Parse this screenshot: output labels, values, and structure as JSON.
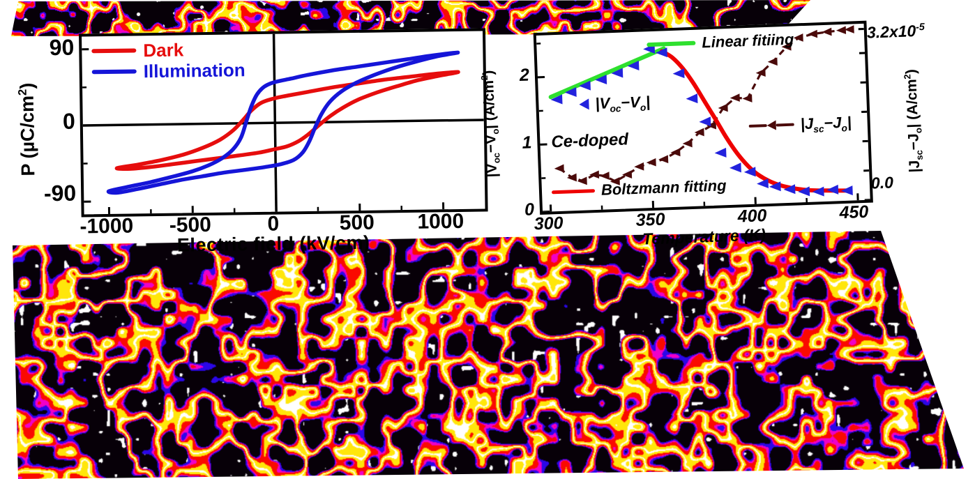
{
  "textures": {
    "palette": {
      "black": "#070008",
      "blue": "#2b07e8",
      "magenta": "#f000c8",
      "red": "#fa0a00",
      "yellow": "#ffe60a",
      "white": "#ffffff"
    }
  },
  "chart_data": [
    {
      "id": "pe_hysteresis",
      "type": "line",
      "xlabel": "Electric field (kV/cm)",
      "ylabel_segments": [
        {
          "t": "P (µC/cm"
        },
        {
          "t": "2",
          "sup": true
        },
        {
          "t": ")"
        }
      ],
      "xlim": [
        -1150,
        1250
      ],
      "ylim": [
        -105,
        105
      ],
      "x_ticks": [
        -1000,
        -500,
        0,
        500,
        1000
      ],
      "y_ticks": [
        90,
        0,
        -90
      ],
      "legend": [
        {
          "label": "Dark",
          "color": "#e60d0d"
        },
        {
          "label": "Illumination",
          "color": "#1515d8"
        }
      ],
      "series": [
        {
          "name": "Dark",
          "color": "#e60d0d",
          "loop": [
            [
              1100,
              57
            ],
            [
              950,
              55
            ],
            [
              800,
              52
            ],
            [
              650,
              49
            ],
            [
              500,
              45
            ],
            [
              350,
              41
            ],
            [
              200,
              36
            ],
            [
              80,
              32
            ],
            [
              0,
              29
            ],
            [
              -80,
              24
            ],
            [
              -140,
              15
            ],
            [
              -190,
              4
            ],
            [
              -250,
              -8
            ],
            [
              -330,
              -19
            ],
            [
              -430,
              -28
            ],
            [
              -550,
              -36
            ],
            [
              -680,
              -42
            ],
            [
              -820,
              -47
            ],
            [
              -950,
              -51
            ],
            [
              -870,
              -52
            ],
            [
              -740,
              -50
            ],
            [
              -610,
              -47
            ],
            [
              -480,
              -44
            ],
            [
              -350,
              -41
            ],
            [
              -220,
              -38
            ],
            [
              -100,
              -35
            ],
            [
              0,
              -31
            ],
            [
              70,
              -28
            ],
            [
              140,
              -22
            ],
            [
              200,
              -14
            ],
            [
              260,
              -4
            ],
            [
              330,
              7
            ],
            [
              410,
              17
            ],
            [
              500,
              26
            ],
            [
              610,
              34
            ],
            [
              730,
              41
            ],
            [
              860,
              48
            ],
            [
              990,
              53
            ]
          ]
        },
        {
          "name": "Illumination",
          "color": "#1515d8",
          "loop": [
            [
              1100,
              80
            ],
            [
              950,
              77
            ],
            [
              800,
              73
            ],
            [
              650,
              69
            ],
            [
              500,
              65
            ],
            [
              350,
              61
            ],
            [
              200,
              56
            ],
            [
              100,
              52
            ],
            [
              0,
              48
            ],
            [
              -60,
              43
            ],
            [
              -105,
              34
            ],
            [
              -140,
              20
            ],
            [
              -170,
              3
            ],
            [
              -205,
              -17
            ],
            [
              -255,
              -31
            ],
            [
              -320,
              -41
            ],
            [
              -400,
              -49
            ],
            [
              -500,
              -56
            ],
            [
              -620,
              -62
            ],
            [
              -750,
              -68
            ],
            [
              -880,
              -73
            ],
            [
              -1000,
              -78
            ],
            [
              -950,
              -80
            ],
            [
              -830,
              -76
            ],
            [
              -700,
              -71
            ],
            [
              -570,
              -66
            ],
            [
              -440,
              -62
            ],
            [
              -310,
              -58
            ],
            [
              -180,
              -55
            ],
            [
              -60,
              -52
            ],
            [
              30,
              -49
            ],
            [
              110,
              -44
            ],
            [
              165,
              -35
            ],
            [
              205,
              -22
            ],
            [
              240,
              -6
            ],
            [
              280,
              10
            ],
            [
              330,
              24
            ],
            [
              400,
              36
            ],
            [
              490,
              46
            ],
            [
              600,
              55
            ],
            [
              720,
              63
            ],
            [
              850,
              70
            ],
            [
              980,
              76
            ]
          ]
        }
      ]
    },
    {
      "id": "photoresponse_vs_temperature",
      "type": "line",
      "xlabel": "Temperature (K)",
      "ylabel_left_segments": [
        {
          "t": "|V"
        },
        {
          "t": "oc",
          "sub": true
        },
        {
          "t": "−V"
        },
        {
          "t": "o",
          "sub": true
        },
        {
          "t": "| (A/cm"
        },
        {
          "t": "2",
          "sup": true
        },
        {
          "t": ")"
        }
      ],
      "ylabel_right_segments": [
        {
          "t": "|J"
        },
        {
          "t": "sc",
          "sub": true
        },
        {
          "t": "−J"
        },
        {
          "t": "o",
          "sub": true
        },
        {
          "t": "| (A/cm"
        },
        {
          "t": "2",
          "sup": true
        },
        {
          "t": ")"
        }
      ],
      "xlim": [
        296,
        456
      ],
      "ylim_left": [
        0,
        2.62
      ],
      "ylim_right_1e-5": [
        0,
        3.3
      ],
      "x_ticks": [
        300,
        350,
        400,
        450
      ],
      "y_ticks_left": [
        2,
        1,
        0
      ],
      "right_tick_top_segments": [
        {
          "t": "3.2x10"
        },
        {
          "t": "-5",
          "sup": true
        }
      ],
      "right_tick_bottom": "0.0",
      "annotations": {
        "linear_fit": "Linear fitiing",
        "voc_segments": [
          {
            "t": "|V"
          },
          {
            "t": "oc",
            "sub": true
          },
          {
            "t": "−V"
          },
          {
            "t": "o",
            "sub": true
          },
          {
            "t": "|"
          }
        ],
        "ce_doped": "Ce-doped",
        "jsc_segments": [
          {
            "t": "|J"
          },
          {
            "t": "sc",
            "sub": true
          },
          {
            "t": "−J"
          },
          {
            "t": "o",
            "sub": true
          },
          {
            "t": "|"
          }
        ],
        "boltzmann_fit": "Boltzmann fitting"
      },
      "series": [
        {
          "name": "|Voc-Vo|",
          "marker": "left-triangle",
          "color": "#2222dd",
          "axis": "left",
          "points": [
            [
              305,
              1.66
            ],
            [
              312,
              1.76
            ],
            [
              319,
              1.85
            ],
            [
              327,
              1.93
            ],
            [
              335,
              2.02
            ],
            [
              343,
              2.12
            ],
            [
              351,
              2.36
            ],
            [
              357,
              2.3
            ],
            [
              365,
              1.98
            ],
            [
              371,
              1.6
            ],
            [
              377,
              1.25
            ],
            [
              384,
              0.78
            ],
            [
              391,
              0.55
            ],
            [
              398,
              0.48
            ],
            [
              404,
              0.3
            ],
            [
              410,
              0.25
            ],
            [
              417,
              0.2
            ],
            [
              424,
              0.16
            ],
            [
              431,
              0.15
            ],
            [
              438,
              0.17
            ],
            [
              445,
              0.15
            ]
          ]
        },
        {
          "name": "Linear fitiing",
          "color": "#2ee02e",
          "axis": "left",
          "points": [
            [
              302,
              1.7
            ],
            [
              358,
              2.36
            ]
          ]
        },
        {
          "name": "Boltzmann fitting",
          "color": "#ee0000",
          "axis": "left",
          "points": [
            [
              357,
              2.32
            ],
            [
              362,
              2.22
            ],
            [
              367,
              2.05
            ],
            [
              372,
              1.82
            ],
            [
              377,
              1.55
            ],
            [
              382,
              1.28
            ],
            [
              387,
              1.0
            ],
            [
              392,
              0.76
            ],
            [
              397,
              0.57
            ],
            [
              402,
              0.43
            ],
            [
              408,
              0.32
            ],
            [
              414,
              0.25
            ],
            [
              421,
              0.2
            ],
            [
              429,
              0.17
            ],
            [
              437,
              0.16
            ],
            [
              446,
              0.15
            ]
          ]
        },
        {
          "name": "|Jsc-Jo|",
          "marker": "left-triangle",
          "color": "#4a0a0a",
          "axis": "right",
          "dashed": true,
          "points": [
            [
              305,
              0.8
            ],
            [
              311,
              0.62
            ],
            [
              316,
              0.55
            ],
            [
              322,
              0.66
            ],
            [
              327,
              0.63
            ],
            [
              332,
              0.52
            ],
            [
              338,
              0.64
            ],
            [
              344,
              0.78
            ],
            [
              350,
              0.85
            ],
            [
              356,
              0.9
            ],
            [
              362,
              1.02
            ],
            [
              368,
              1.18
            ],
            [
              374,
              1.38
            ],
            [
              380,
              1.5
            ],
            [
              386,
              1.82
            ],
            [
              392,
              2.0
            ],
            [
              398,
              1.98
            ],
            [
              405,
              2.45
            ],
            [
              411,
              2.65
            ],
            [
              418,
              2.92
            ],
            [
              424,
              3.08
            ],
            [
              431,
              3.14
            ],
            [
              438,
              3.17
            ],
            [
              445,
              3.19
            ],
            [
              449,
              3.2
            ]
          ]
        }
      ]
    }
  ]
}
